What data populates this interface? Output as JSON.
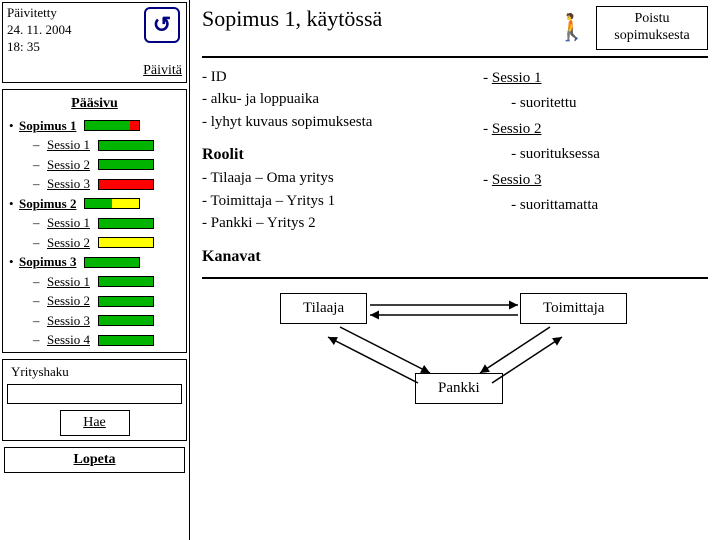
{
  "colors": {
    "green": "#00b400",
    "red": "#ff0000",
    "yellow": "#ffff00"
  },
  "sidebar": {
    "updated_label": "Päivitetty",
    "updated_date": "24. 11. 2004",
    "updated_time": "18: 35",
    "refresh": "Päivitä",
    "main_page": "Pääsivu",
    "tree": [
      {
        "level": 1,
        "label": "Sopimus 1",
        "bold": true,
        "bar": [
          [
            "green",
            0.82
          ],
          [
            "red",
            0.18
          ]
        ]
      },
      {
        "level": 2,
        "label": "Sessio 1",
        "bar": [
          [
            "green",
            1.0
          ]
        ]
      },
      {
        "level": 2,
        "label": "Sessio 2",
        "bar": [
          [
            "green",
            1.0
          ]
        ]
      },
      {
        "level": 2,
        "label": "Sessio 3",
        "bar": [
          [
            "red",
            1.0
          ]
        ]
      },
      {
        "level": 1,
        "label": "Sopimus 2",
        "bold": true,
        "bar": [
          [
            "green",
            0.5
          ],
          [
            "yellow",
            0.5
          ]
        ]
      },
      {
        "level": 2,
        "label": "Sessio 1",
        "bar": [
          [
            "green",
            1.0
          ]
        ]
      },
      {
        "level": 2,
        "label": "Sessio 2",
        "bar": [
          [
            "yellow",
            1.0
          ]
        ]
      },
      {
        "level": 1,
        "label": "Sopimus 3",
        "bold": true,
        "bar": [
          [
            "green",
            1.0
          ]
        ]
      },
      {
        "level": 2,
        "label": "Sessio 1",
        "bar": [
          [
            "green",
            1.0
          ]
        ]
      },
      {
        "level": 2,
        "label": "Sessio 2",
        "bar": [
          [
            "green",
            1.0
          ]
        ]
      },
      {
        "level": 2,
        "label": "Sessio 3",
        "bar": [
          [
            "green",
            1.0
          ]
        ]
      },
      {
        "level": 2,
        "label": "Sessio 4",
        "bar": [
          [
            "green",
            1.0
          ]
        ]
      }
    ],
    "search_label": "Yrityshaku",
    "search_value": "",
    "search_btn": "Hae",
    "quit": "Lopeta"
  },
  "main": {
    "title": "Sopimus 1, käytössä",
    "exit_label": "Poistu sopimuksesta",
    "info_lines": [
      "- ID",
      "- alku- ja loppuaika",
      "- lyhyt kuvaus sopimuksesta"
    ],
    "roles_header": "Roolit",
    "roles": [
      "- Tilaaja – Oma yritys",
      "- Toimittaja – Yritys 1",
      "- Pankki – Yritys 2"
    ],
    "channels_header": "Kanavat",
    "status_tree": [
      {
        "level": 1,
        "label": "Sessio 1",
        "underline": true,
        "prefix": "- "
      },
      {
        "level": 2,
        "label": "suoritettu",
        "underline": false,
        "prefix": "- "
      },
      {
        "level": 1,
        "label": "Sessio 2",
        "underline": true,
        "prefix": "- "
      },
      {
        "level": 2,
        "label": "suorituksessa",
        "underline": false,
        "prefix": "- "
      },
      {
        "level": 1,
        "label": "Sessio 3",
        "underline": true,
        "prefix": "- "
      },
      {
        "level": 2,
        "label": "suorittamatta",
        "underline": false,
        "prefix": "- "
      }
    ],
    "diagram": {
      "tilaaja": "Tilaaja",
      "toimittaja": "Toimittaja",
      "pankki": "Pankki"
    }
  }
}
